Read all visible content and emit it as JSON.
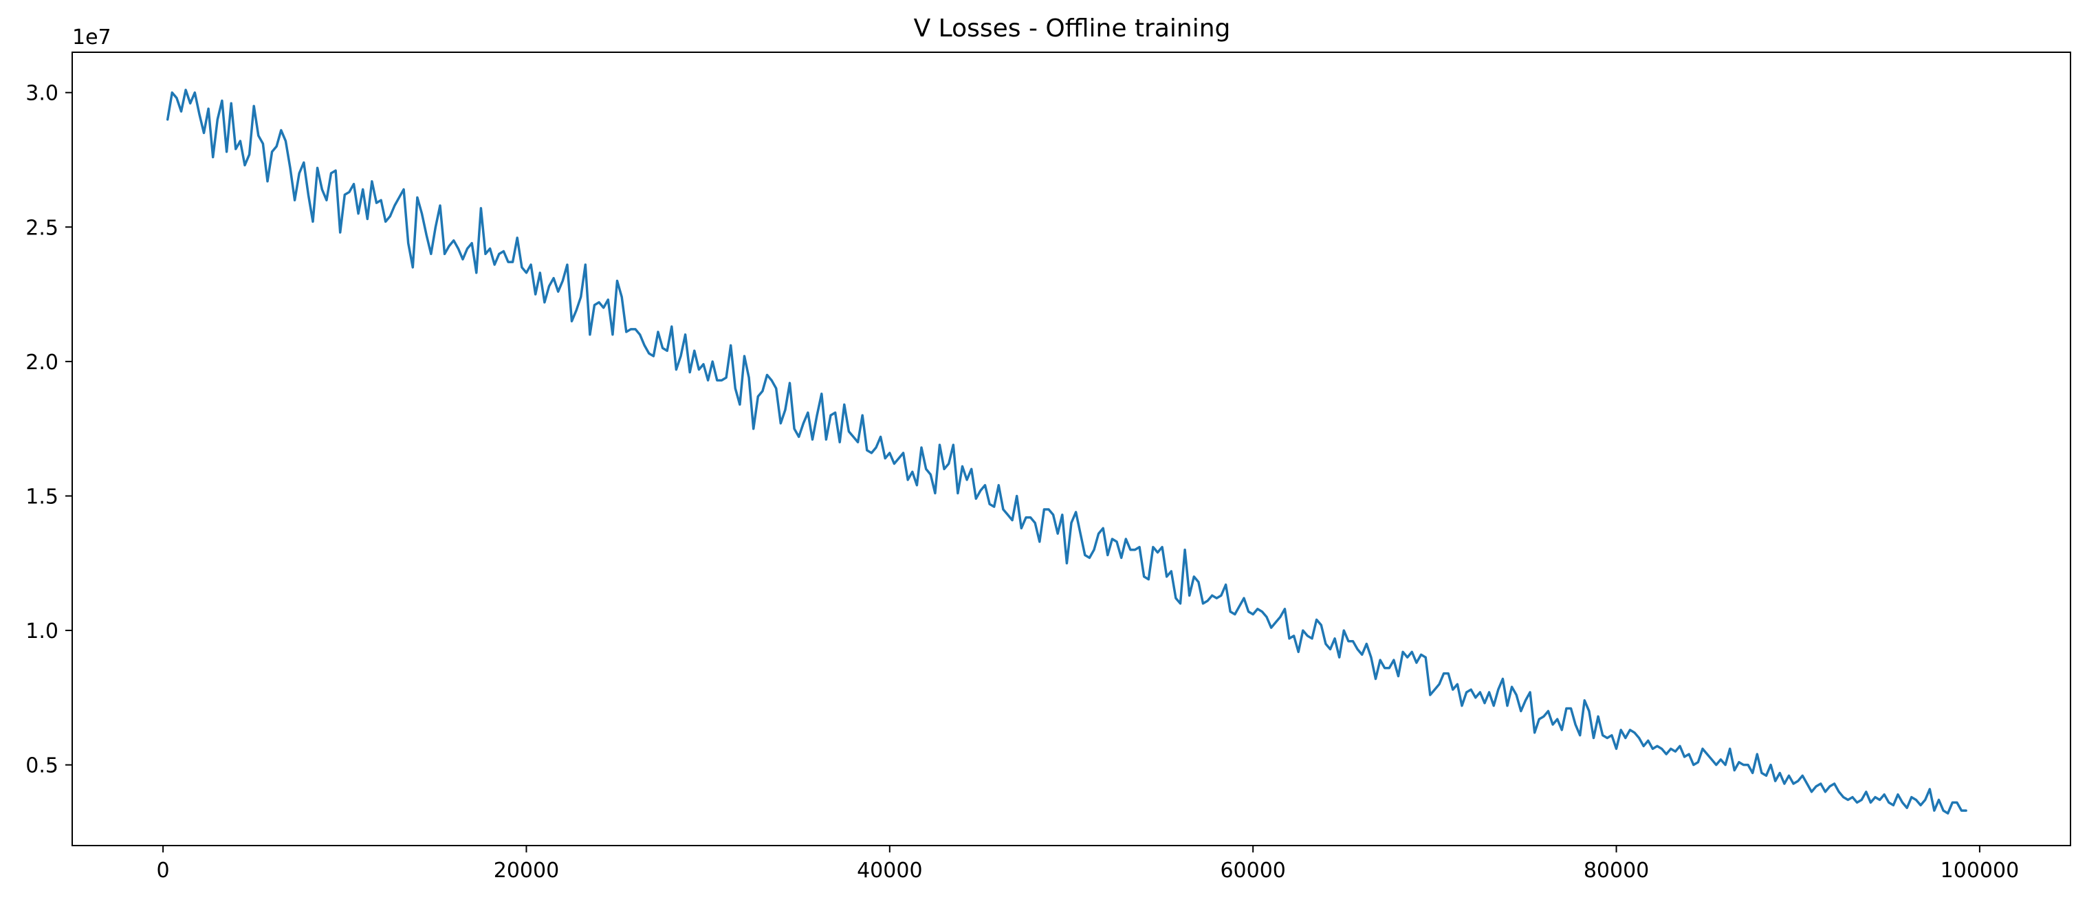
{
  "chart_data": {
    "type": "line",
    "title": "V Losses - Offline training",
    "xlabel": "",
    "ylabel": "",
    "y_offset_label": "1e7",
    "xlim": [
      -5000,
      105000
    ],
    "ylim": [
      0.2,
      3.15
    ],
    "x_ticks": [
      0,
      20000,
      40000,
      60000,
      80000,
      100000
    ],
    "x_tick_labels": [
      "0",
      "20000",
      "40000",
      "60000",
      "80000",
      "100000"
    ],
    "y_ticks": [
      0.5,
      1.0,
      1.5,
      2.0,
      2.5,
      3.0
    ],
    "y_tick_labels": [
      "0.5",
      "1.0",
      "1.5",
      "2.0",
      "2.5",
      "3.0"
    ],
    "grid": false,
    "series": [
      {
        "color": "#1f77b4",
        "x_start": 250,
        "x_step": 250,
        "values": [
          2.9,
          3.0,
          2.98,
          2.93,
          3.01,
          2.96,
          3.0,
          2.92,
          2.85,
          2.94,
          2.76,
          2.9,
          2.97,
          2.78,
          2.96,
          2.79,
          2.82,
          2.73,
          2.77,
          2.95,
          2.84,
          2.81,
          2.67,
          2.78,
          2.8,
          2.86,
          2.82,
          2.72,
          2.6,
          2.7,
          2.74,
          2.62,
          2.52,
          2.72,
          2.64,
          2.6,
          2.7,
          2.71,
          2.48,
          2.62,
          2.63,
          2.66,
          2.55,
          2.64,
          2.53,
          2.67,
          2.59,
          2.6,
          2.52,
          2.54,
          2.58,
          2.61,
          2.64,
          2.44,
          2.35,
          2.61,
          2.55,
          2.47,
          2.4,
          2.5,
          2.58,
          2.4,
          2.43,
          2.45,
          2.42,
          2.38,
          2.42,
          2.44,
          2.33,
          2.57,
          2.4,
          2.42,
          2.36,
          2.4,
          2.41,
          2.37,
          2.37,
          2.46,
          2.35,
          2.33,
          2.36,
          2.25,
          2.33,
          2.22,
          2.28,
          2.31,
          2.26,
          2.3,
          2.36,
          2.15,
          2.19,
          2.24,
          2.36,
          2.1,
          2.21,
          2.22,
          2.2,
          2.23,
          2.1,
          2.3,
          2.24,
          2.11,
          2.12,
          2.12,
          2.1,
          2.06,
          2.03,
          2.02,
          2.11,
          2.05,
          2.04,
          2.13,
          1.97,
          2.02,
          2.1,
          1.96,
          2.04,
          1.97,
          1.99,
          1.93,
          2.0,
          1.93,
          1.93,
          1.94,
          2.06,
          1.9,
          1.84,
          2.02,
          1.94,
          1.75,
          1.87,
          1.89,
          1.95,
          1.93,
          1.9,
          1.77,
          1.82,
          1.92,
          1.75,
          1.72,
          1.77,
          1.81,
          1.71,
          1.8,
          1.88,
          1.71,
          1.8,
          1.81,
          1.7,
          1.84,
          1.74,
          1.72,
          1.7,
          1.8,
          1.67,
          1.66,
          1.68,
          1.72,
          1.64,
          1.66,
          1.62,
          1.64,
          1.66,
          1.56,
          1.59,
          1.54,
          1.68,
          1.6,
          1.58,
          1.51,
          1.69,
          1.6,
          1.62,
          1.69,
          1.51,
          1.61,
          1.56,
          1.6,
          1.49,
          1.52,
          1.54,
          1.47,
          1.46,
          1.54,
          1.45,
          1.43,
          1.41,
          1.5,
          1.38,
          1.42,
          1.42,
          1.4,
          1.33,
          1.45,
          1.45,
          1.43,
          1.36,
          1.43,
          1.25,
          1.4,
          1.44,
          1.36,
          1.28,
          1.27,
          1.3,
          1.36,
          1.38,
          1.28,
          1.34,
          1.33,
          1.27,
          1.34,
          1.3,
          1.3,
          1.31,
          1.2,
          1.19,
          1.31,
          1.29,
          1.31,
          1.2,
          1.22,
          1.12,
          1.1,
          1.3,
          1.13,
          1.2,
          1.18,
          1.1,
          1.11,
          1.13,
          1.12,
          1.13,
          1.17,
          1.07,
          1.06,
          1.09,
          1.12,
          1.07,
          1.06,
          1.08,
          1.07,
          1.05,
          1.01,
          1.03,
          1.05,
          1.08,
          0.97,
          0.98,
          0.92,
          1.0,
          0.98,
          0.97,
          1.04,
          1.02,
          0.95,
          0.93,
          0.97,
          0.9,
          1.0,
          0.96,
          0.96,
          0.93,
          0.91,
          0.95,
          0.9,
          0.82,
          0.89,
          0.86,
          0.86,
          0.89,
          0.83,
          0.92,
          0.9,
          0.92,
          0.88,
          0.91,
          0.9,
          0.76,
          0.78,
          0.8,
          0.84,
          0.84,
          0.78,
          0.8,
          0.72,
          0.77,
          0.78,
          0.75,
          0.77,
          0.73,
          0.77,
          0.72,
          0.78,
          0.82,
          0.72,
          0.79,
          0.76,
          0.7,
          0.74,
          0.77,
          0.62,
          0.67,
          0.68,
          0.7,
          0.65,
          0.67,
          0.63,
          0.71,
          0.71,
          0.65,
          0.61,
          0.74,
          0.7,
          0.6,
          0.68,
          0.61,
          0.6,
          0.61,
          0.56,
          0.63,
          0.6,
          0.63,
          0.62,
          0.6,
          0.57,
          0.59,
          0.56,
          0.57,
          0.56,
          0.54,
          0.56,
          0.55,
          0.57,
          0.53,
          0.54,
          0.5,
          0.51,
          0.56,
          0.54,
          0.52,
          0.5,
          0.52,
          0.5,
          0.56,
          0.48,
          0.51,
          0.5,
          0.5,
          0.47,
          0.54,
          0.47,
          0.46,
          0.5,
          0.44,
          0.47,
          0.43,
          0.46,
          0.43,
          0.44,
          0.46,
          0.43,
          0.4,
          0.42,
          0.43,
          0.4,
          0.42,
          0.43,
          0.4,
          0.38,
          0.37,
          0.38,
          0.36,
          0.37,
          0.4,
          0.36,
          0.38,
          0.37,
          0.39,
          0.36,
          0.35,
          0.39,
          0.36,
          0.34,
          0.38,
          0.37,
          0.35,
          0.37,
          0.41,
          0.33,
          0.37,
          0.33,
          0.32,
          0.36,
          0.36,
          0.33,
          0.33
        ]
      }
    ]
  }
}
